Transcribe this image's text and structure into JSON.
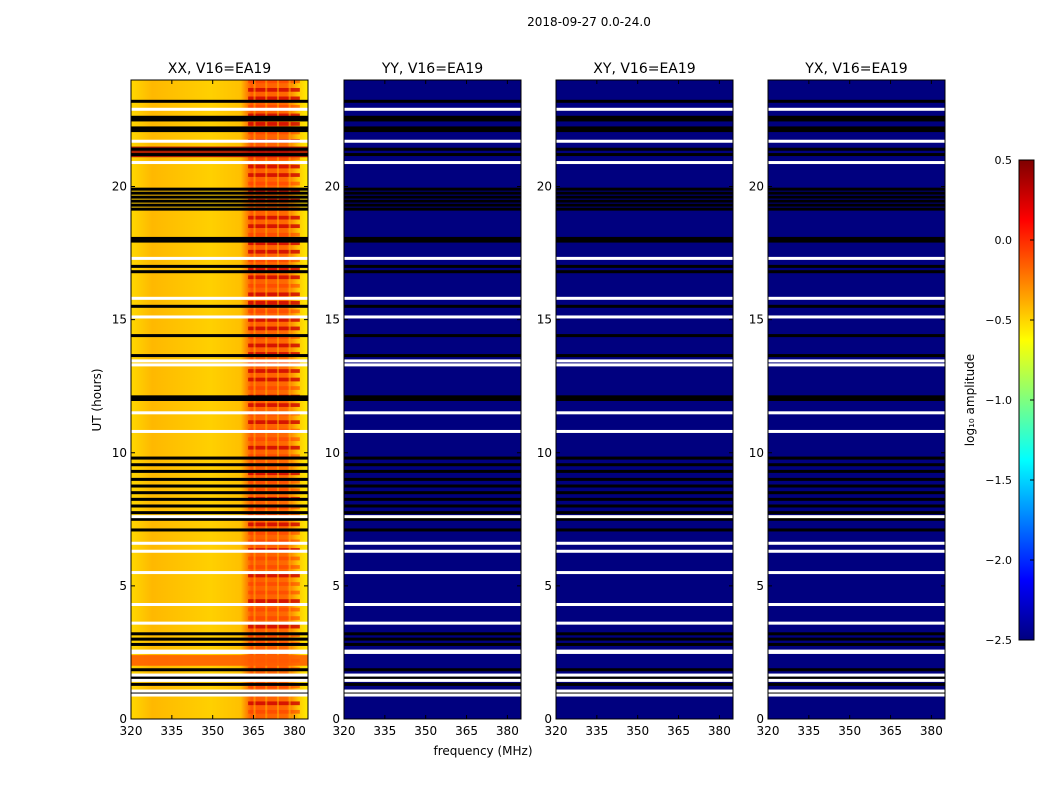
{
  "chart_data": {
    "type": "heatmap",
    "suptitle": "2018-09-27 0.0-24.0",
    "xlabel": "frequency (MHz)",
    "ylabel": "UT (hours)",
    "xlim": [
      320,
      385
    ],
    "ylim": [
      0,
      24
    ],
    "xticks": [
      320,
      335,
      350,
      365,
      380
    ],
    "yticks": [
      0,
      5,
      10,
      15,
      20
    ],
    "colorbar": {
      "label": "log₁₀ amplitude",
      "range": [
        -2.5,
        0.5
      ],
      "ticks": [
        "0.5",
        "0.0",
        "−0.5",
        "−1.0",
        "−1.5",
        "−2.0",
        "−2.5"
      ],
      "colors": [
        "#00007f",
        "#0000ff",
        "#007fff",
        "#00ffff",
        "#7fff7f",
        "#ffff00",
        "#ff7f00",
        "#ff0000",
        "#7f0000"
      ]
    },
    "panels": [
      {
        "title": "XX, V16=EA19",
        "dominant_value": -0.5,
        "high_band_MHz": [
          363,
          382
        ],
        "high_band_value": 0.1
      },
      {
        "title": "YY, V16=EA19",
        "dominant_value": -2.5
      },
      {
        "title": "XY, V16=EA19",
        "dominant_value": -2.5
      },
      {
        "title": "YX, V16=EA19",
        "dominant_value": -2.5
      }
    ],
    "flagged_black_hours": [
      0.95,
      1.3,
      1.55,
      1.85,
      2.8,
      3.0,
      3.2,
      7.1,
      7.5,
      7.75,
      8.0,
      8.25,
      8.5,
      8.75,
      9.0,
      9.3,
      9.55,
      9.8,
      12.0,
      12.1,
      13.65,
      14.4,
      15.5,
      16.8,
      17.0,
      17.95,
      18.05,
      19.15,
      19.3,
      19.45,
      19.6,
      19.75,
      19.9,
      21.2,
      21.4,
      22.1,
      22.2,
      22.5,
      22.6,
      23.2
    ],
    "missing_white_hours": [
      0.9,
      1.05,
      1.45,
      1.65,
      2.5,
      2.55,
      3.6,
      4.3,
      5.5,
      6.3,
      6.6,
      7.6,
      10.8,
      11.5,
      13.3,
      13.45,
      15.1,
      15.8,
      17.3,
      20.9,
      21.7,
      22.9
    ]
  }
}
